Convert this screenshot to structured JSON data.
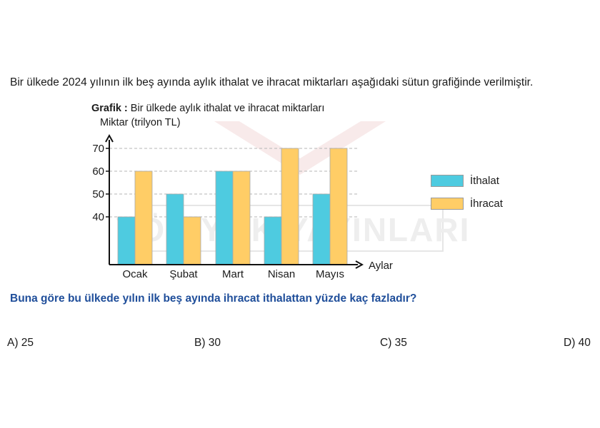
{
  "intro_text": "Bir ülkede 2024 yılının ilk beş ayında aylık ithalat ve ihracat miktarları aşağıdaki sütun grafiğinde verilmiştir.",
  "question": "Buna göre bu ülkede yılın ilk beş ayında ihracat ithalattan yüzde kaç fazladır?",
  "options": [
    {
      "label": "A) 25"
    },
    {
      "label": "B) 30"
    },
    {
      "label": "C) 35"
    },
    {
      "label": "D) 40"
    }
  ],
  "watermark": "YÖK YÖK YAYINLARI",
  "chart_data": {
    "type": "bar",
    "title_prefix": "Grafik :",
    "title": "Bir ülkede aylık ithalat ve ihracat miktarları",
    "ylabel": "Miktar (trilyon TL)",
    "xlabel": "Aylar",
    "categories": [
      "Ocak",
      "Şubat",
      "Mart",
      "Nisan",
      "Mayıs"
    ],
    "yticks": [
      40,
      50,
      60,
      70
    ],
    "axis_break": true,
    "grid": true,
    "legend_position": "right",
    "series": [
      {
        "name": "İthalat",
        "color": "#4ecbe0",
        "values": [
          40,
          50,
          60,
          40,
          50
        ]
      },
      {
        "name": "İhracat",
        "color": "#ffcd66",
        "values": [
          60,
          40,
          60,
          70,
          70
        ]
      }
    ]
  }
}
